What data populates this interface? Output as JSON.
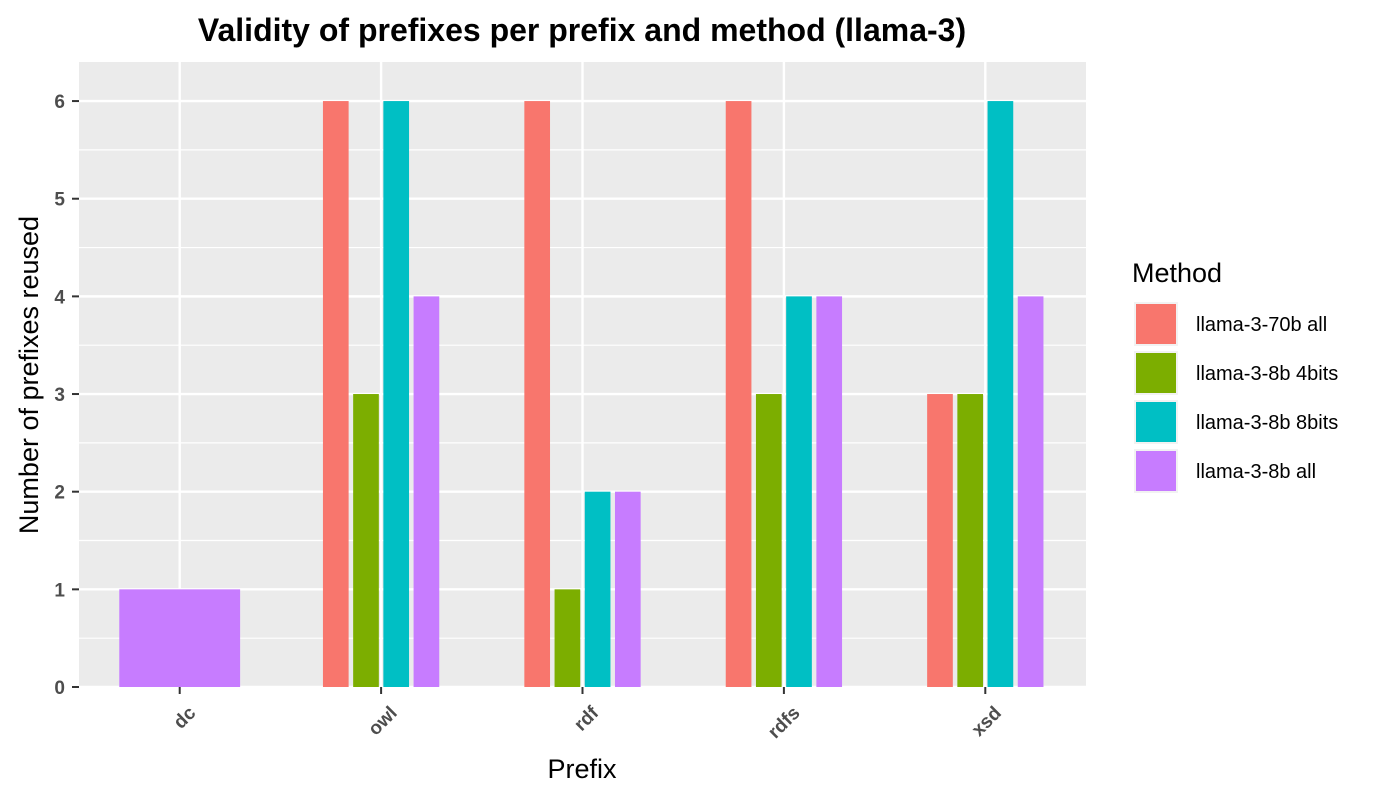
{
  "chart_data": {
    "type": "bar",
    "title": "Validity of prefixes per prefix and method (llama-3)",
    "xlabel": "Prefix",
    "ylabel": "Number of prefixes reused",
    "categories": [
      "dc",
      "owl",
      "rdf",
      "rdfs",
      "xsd"
    ],
    "ylim": [
      0,
      6.4
    ],
    "yticks": [
      0,
      1,
      2,
      3,
      4,
      5,
      6
    ],
    "grid": true,
    "legend": {
      "title": "Method",
      "position": "right"
    },
    "series": [
      {
        "name": "llama-3-70b all",
        "color": "#F8766D",
        "values": [
          null,
          6,
          6,
          6,
          3
        ]
      },
      {
        "name": "llama-3-8b 4bits",
        "color": "#7CAE00",
        "values": [
          null,
          3,
          1,
          3,
          3
        ]
      },
      {
        "name": "llama-3-8b 8bits",
        "color": "#00BFC4",
        "values": [
          null,
          6,
          2,
          4,
          6
        ]
      },
      {
        "name": "llama-3-8b all",
        "color": "#C77CFF",
        "values": [
          1,
          4,
          2,
          4,
          4
        ]
      }
    ]
  }
}
